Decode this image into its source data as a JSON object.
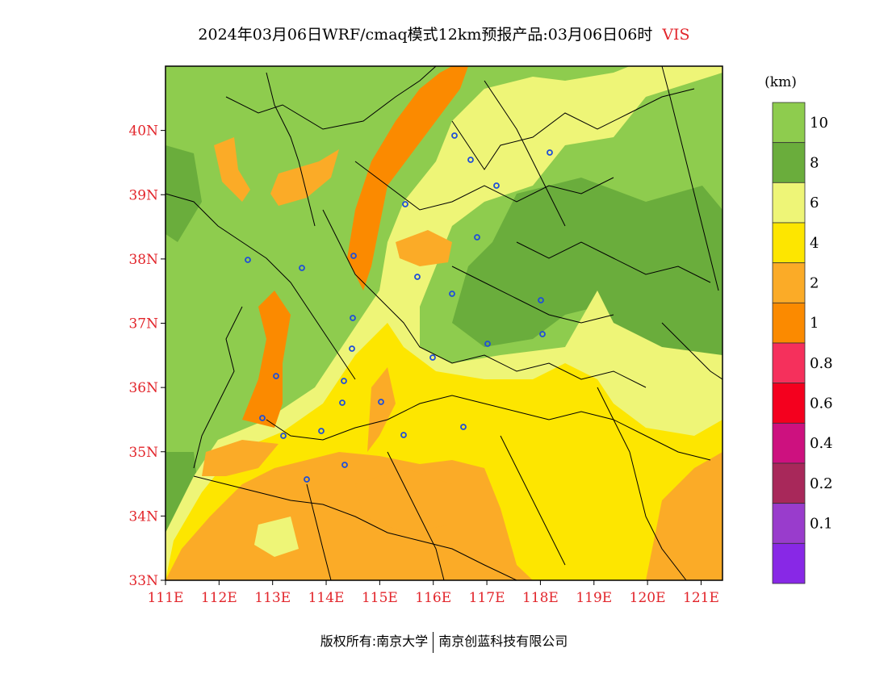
{
  "title": {
    "main": "2024年03月06日WRF/cmaq模式12km预报产品:03月06日06时",
    "variable": "VIS"
  },
  "map": {
    "lat_labels": [
      "40N",
      "39N",
      "38N",
      "37N",
      "36N",
      "35N",
      "34N",
      "33N"
    ],
    "lon_labels": [
      "111E",
      "112E",
      "113E",
      "114E",
      "115E",
      "116E",
      "117E",
      "118E",
      "119E",
      "120E",
      "121E"
    ],
    "lon_range": [
      111,
      121.4
    ],
    "lat_range": [
      33,
      41
    ]
  },
  "legend": {
    "unit": "(km)",
    "labels": [
      "10",
      "8",
      "6",
      "4",
      "2",
      "1",
      "0.8",
      "0.6",
      "0.4",
      "0.2",
      "0.1"
    ],
    "colors": [
      "#8ecc4e",
      "#6aad3c",
      "#eef577",
      "#fde600",
      "#fbab27",
      "#fb8a00",
      "#f5305c",
      "#f4001e",
      "#cd117f",
      "#a8285a",
      "#993ccc",
      "#8828e6"
    ]
  },
  "footer": {
    "copyright": "版权所有:南京大学",
    "company": "南京创蓝科技有限公司"
  }
}
